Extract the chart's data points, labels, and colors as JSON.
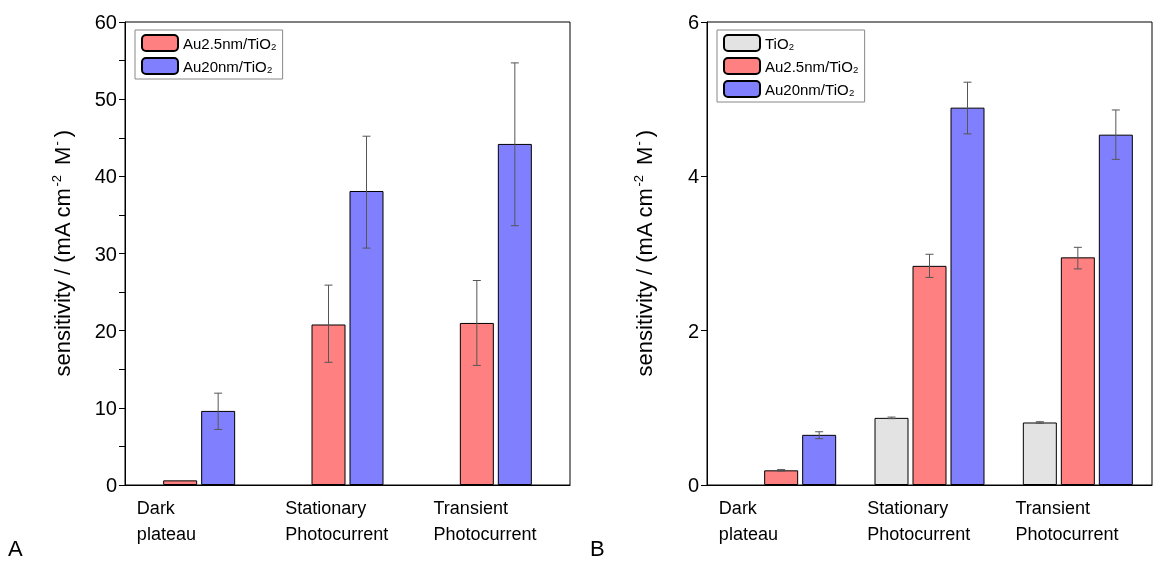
{
  "chart_data": [
    {
      "type": "bar",
      "categories": [
        "Dark\nplateau",
        "Stationary\nPhotocurrent",
        "Transient\nPhotocurrent"
      ],
      "ylabel": "sensitivity / (mA cm$^{-2}$ M$^{-}$)",
      "ylim": [
        0,
        60
      ],
      "yticks": [
        0,
        {
          "value": 5,
          "label": null
        },
        10,
        {
          "value": 15,
          "label": null
        },
        20,
        {
          "value": 25,
          "label": null
        },
        30,
        {
          "value": 35,
          "label": null
        },
        40,
        {
          "value": 45,
          "label": null
        },
        50,
        {
          "value": 55,
          "label": null
        },
        60
      ],
      "legend": "top left",
      "grid": false,
      "annotations": [
        "A"
      ],
      "series": [
        {
          "name": "Au2.5nm/TiO₂",
          "color": "#ff8080",
          "values": [
            0.6,
            20.8,
            21.0
          ],
          "errors": [
            null,
            [
              15.9,
              25.9
            ],
            [
              15.5,
              26.5
            ]
          ]
        },
        {
          "name": "Au20nm/TiO₂",
          "color": "#8080ff",
          "values": [
            9.6,
            38.1,
            44.2
          ],
          "errors": [
            [
              7.2,
              11.9
            ],
            [
              30.7,
              45.2
            ],
            [
              33.6,
              54.7
            ]
          ]
        }
      ]
    },
    {
      "type": "bar",
      "categories": [
        "Dark\nplateau",
        "Stationary\nPhotocurrent",
        "Transient\nPhotocurrent"
      ],
      "ylabel": "sensitivity / (mA cm$^{-2}$ M$^{-}$)",
      "ylim": [
        0,
        6
      ],
      "yticks": [
        0,
        2,
        4,
        6
      ],
      "legend": "top left",
      "grid": false,
      "annotations": [
        "B"
      ],
      "series": [
        {
          "name": "TiO₂",
          "color": "#e3e3e3",
          "values": [
            null,
            0.87,
            0.81
          ],
          "errors": [
            null,
            0.01,
            0.01
          ]
        },
        {
          "name": "Au2.5nm/TiO₂",
          "color": "#ff8080",
          "values": [
            0.19,
            2.84,
            2.95
          ],
          "errors": [
            0.01,
            [
              2.69,
              2.99
            ],
            [
              2.8,
              3.08
            ]
          ]
        },
        {
          "name": "Au20nm/TiO₂",
          "color": "#8080ff",
          "values": [
            0.65,
            4.89,
            4.54
          ],
          "errors": [
            [
              0.6,
              0.69
            ],
            [
              4.55,
              5.22
            ],
            [
              4.22,
              4.86
            ]
          ]
        }
      ]
    }
  ]
}
